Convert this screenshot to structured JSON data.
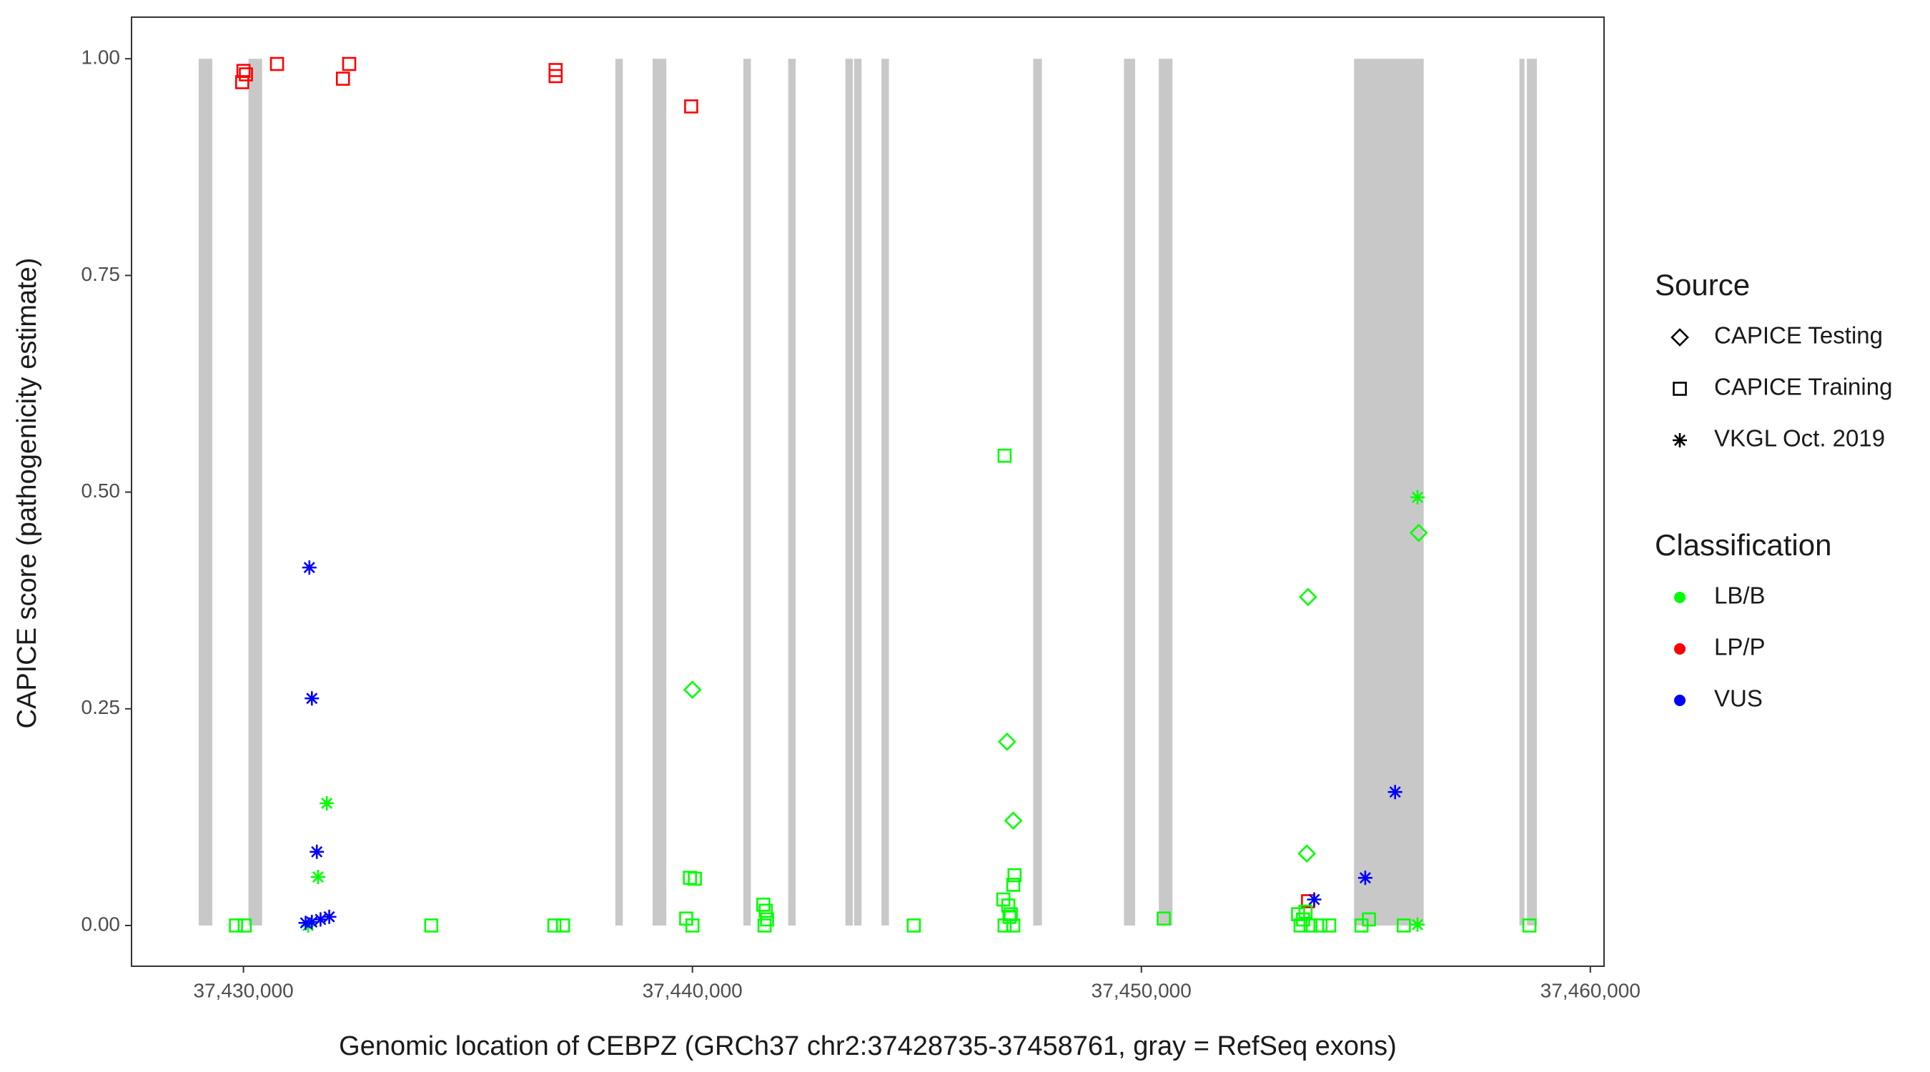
{
  "chart_data": {
    "type": "scatter",
    "xlabel": "Genomic location of CEBPZ (GRCh37 chr2:37428735-37458761, gray = RefSeq exons)",
    "ylabel": "CAPICE score (pathogenicity estimate)",
    "xlim": [
      37427507,
      37460305
    ],
    "ylim": [
      -0.047,
      1.048
    ],
    "xticks": [
      {
        "value": 37430000,
        "label": "37,430,000"
      },
      {
        "value": 37440000,
        "label": "37,440,000"
      },
      {
        "value": 37450000,
        "label": "37,450,000"
      },
      {
        "value": 37460000,
        "label": "37,460,000"
      }
    ],
    "yticks": [
      {
        "value": 0,
        "label": "0.00"
      },
      {
        "value": 0.25,
        "label": "0.25"
      },
      {
        "value": 0.5,
        "label": "0.50"
      },
      {
        "value": 0.75,
        "label": "0.75"
      },
      {
        "value": 1,
        "label": "1.00"
      }
    ],
    "exon_color": "#c8c8c8",
    "exons": [
      [
        37429003,
        37429307
      ],
      [
        37430111,
        37430416
      ],
      [
        37438283,
        37438449
      ],
      [
        37439114,
        37439418
      ],
      [
        37441136,
        37441302
      ],
      [
        37442133,
        37442299
      ],
      [
        37443407,
        37443573
      ],
      [
        37443601,
        37443767
      ],
      [
        37444211,
        37444377
      ],
      [
        37447590,
        37447784
      ],
      [
        37449612,
        37449861
      ],
      [
        37450388,
        37450693
      ],
      [
        37454737,
        37456288
      ],
      [
        37458421,
        37458532
      ],
      [
        37458587,
        37458809
      ]
    ],
    "legend_source": {
      "title": "Source",
      "items": [
        {
          "name": "CAPICE Testing",
          "shape": "diamond"
        },
        {
          "name": "CAPICE Training",
          "shape": "square"
        },
        {
          "name": "VKGL Oct. 2019",
          "shape": "asterisk"
        }
      ]
    },
    "legend_classification": {
      "title": "Classification",
      "items": [
        {
          "name": "LB/B",
          "color": "#00ff00"
        },
        {
          "name": "LP/P",
          "color": "#ff0000"
        },
        {
          "name": "VUS",
          "color": "#0000ff"
        }
      ]
    },
    "series": [
      {
        "source": "CAPICE Training",
        "classification": "LP/P",
        "x": [
          37429972,
          37430000,
          37430055,
          37430748,
          37432216,
          37432355,
          37436953,
          37436953,
          37439972,
          37453712
        ],
        "y": [
          0.973,
          0.986,
          0.982,
          0.994,
          0.977,
          0.994,
          0.987,
          0.98,
          0.945,
          0.028
        ]
      },
      {
        "source": "CAPICE Training",
        "classification": "LB/B",
        "x": [
          37429834,
          37430028,
          37434183,
          37436925,
          37437119,
          37439945,
          37440055,
          37439861,
          37440000,
          37441579,
          37441634,
          37441662,
          37441607,
          37444931,
          37446953,
          37446925,
          37447036,
          37447091,
          37447175,
          37447147,
          37447064,
          37446953,
          37447147,
          37450499,
          37453490,
          37453601,
          37453656,
          37453546,
          37453767,
          37453989,
          37454183,
          37454903,
          37455069,
          37455845,
          37458643
        ],
        "y": [
          0,
          0,
          0,
          0,
          0,
          0.055,
          0.054,
          0.008,
          0,
          0.024,
          0.017,
          0.007,
          0,
          0,
          0.542,
          0.03,
          0.023,
          0.013,
          0.058,
          0.047,
          0.01,
          0,
          0,
          0.008,
          0.013,
          0.007,
          0.016,
          0,
          0,
          0,
          0,
          0,
          0.007,
          0,
          0
        ]
      },
      {
        "source": "CAPICE Testing",
        "classification": "LB/B",
        "x": [
          37440000,
          37447008,
          37447147,
          37456177,
          37453712,
          37453684
        ],
        "y": [
          0.272,
          0.212,
          0.121,
          0.453,
          0.379,
          0.083
        ]
      },
      {
        "source": "VKGL Oct. 2019",
        "classification": "LB/B",
        "x": [
          37431856,
          37431662,
          37431440,
          37456150,
          37456150
        ],
        "y": [
          0.141,
          0.056,
          0,
          0.494,
          0.001
        ]
      },
      {
        "source": "VKGL Oct. 2019",
        "classification": "VUS",
        "x": [
          37431468,
          37431524,
          37431634,
          37431385,
          37431524,
          37431717,
          37431911,
          37453850,
          37454986,
          37455651
        ],
        "y": [
          0.413,
          0.262,
          0.085,
          0.003,
          0.004,
          0.007,
          0.01,
          0.03,
          0.055,
          0.154
        ]
      }
    ]
  }
}
